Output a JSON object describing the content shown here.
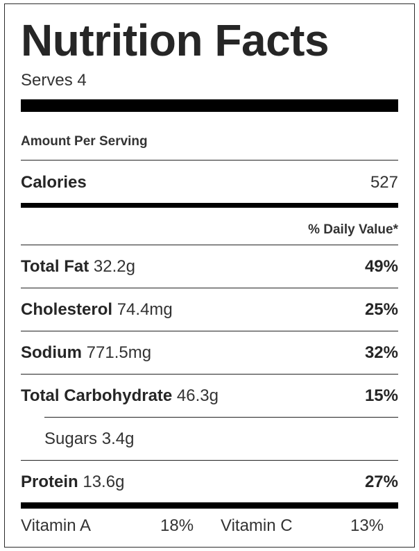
{
  "title": "Nutrition Facts",
  "serves": "Serves 4",
  "amount_per_serving": "Amount Per Serving",
  "calories": {
    "label": "Calories",
    "value": "527"
  },
  "daily_value_header": "% Daily Value*",
  "nutrients": [
    {
      "label": "Total Fat",
      "amount": "32.2g",
      "pct": "49%"
    },
    {
      "label": "Cholesterol",
      "amount": "74.4mg",
      "pct": "25%"
    },
    {
      "label": "Sodium",
      "amount": "771.5mg",
      "pct": "32%"
    },
    {
      "label": "Total Carbohydrate",
      "amount": "46.3g",
      "pct": "15%"
    }
  ],
  "sugars": {
    "label": "Sugars",
    "amount": "3.4g"
  },
  "protein": {
    "label": "Protein",
    "amount": "13.6g",
    "pct": "27%"
  },
  "vitamins": [
    {
      "label": "Vitamin A",
      "pct": "18%"
    },
    {
      "label": "Vitamin C",
      "pct": "13%"
    }
  ]
}
